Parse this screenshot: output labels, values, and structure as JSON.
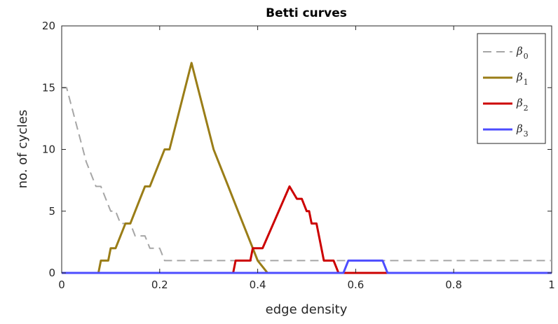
{
  "chart_data": {
    "type": "line",
    "title": "Betti curves",
    "xlabel": "edge density",
    "ylabel": "no. of cycles",
    "xlim": [
      0,
      1
    ],
    "ylim": [
      0,
      20
    ],
    "xticks": [
      0,
      0.2,
      0.4,
      0.6,
      0.8,
      1
    ],
    "xtick_labels": [
      "0",
      "0.2",
      "0.4",
      "0.6",
      "0.8",
      "1"
    ],
    "yticks": [
      0,
      5,
      10,
      15,
      20
    ],
    "ytick_labels": [
      "0",
      "5",
      "10",
      "15",
      "20"
    ],
    "grid": false,
    "legend_position": "top-right",
    "series": [
      {
        "name": "β0",
        "legend_symbol": "β",
        "legend_subscript": "0",
        "color": "#a6a6a6",
        "dashed": true,
        "width": 2,
        "points": [
          [
            0,
            15
          ],
          [
            0.01,
            15
          ],
          [
            0.03,
            12
          ],
          [
            0.05,
            9
          ],
          [
            0.07,
            7
          ],
          [
            0.08,
            7
          ],
          [
            0.09,
            6
          ],
          [
            0.1,
            5
          ],
          [
            0.11,
            5
          ],
          [
            0.12,
            4
          ],
          [
            0.14,
            4
          ],
          [
            0.15,
            3
          ],
          [
            0.17,
            3
          ],
          [
            0.18,
            2
          ],
          [
            0.19,
            2
          ],
          [
            0.2,
            2
          ],
          [
            0.21,
            1
          ],
          [
            1,
            1
          ]
        ]
      },
      {
        "name": "β1",
        "legend_symbol": "β",
        "legend_subscript": "1",
        "color": "#9a7d17",
        "dashed": false,
        "width": 3,
        "points": [
          [
            0,
            0
          ],
          [
            0.075,
            0
          ],
          [
            0.08,
            1
          ],
          [
            0.095,
            1
          ],
          [
            0.1,
            2
          ],
          [
            0.11,
            2
          ],
          [
            0.12,
            3
          ],
          [
            0.13,
            4
          ],
          [
            0.14,
            4
          ],
          [
            0.16,
            6
          ],
          [
            0.17,
            7
          ],
          [
            0.18,
            7
          ],
          [
            0.19,
            8
          ],
          [
            0.2,
            9
          ],
          [
            0.21,
            10
          ],
          [
            0.22,
            10
          ],
          [
            0.265,
            17
          ],
          [
            0.31,
            10
          ],
          [
            0.32,
            9
          ],
          [
            0.33,
            8
          ],
          [
            0.34,
            7
          ],
          [
            0.35,
            6
          ],
          [
            0.36,
            5
          ],
          [
            0.38,
            3
          ],
          [
            0.39,
            2
          ],
          [
            0.4,
            1
          ],
          [
            0.42,
            0
          ],
          [
            1,
            0
          ]
        ]
      },
      {
        "name": "β2",
        "legend_symbol": "β",
        "legend_subscript": "2",
        "color": "#cc0000",
        "dashed": false,
        "width": 3,
        "points": [
          [
            0,
            0
          ],
          [
            0.35,
            0
          ],
          [
            0.355,
            1
          ],
          [
            0.385,
            1
          ],
          [
            0.39,
            2
          ],
          [
            0.41,
            2
          ],
          [
            0.465,
            7
          ],
          [
            0.48,
            6
          ],
          [
            0.49,
            6
          ],
          [
            0.5,
            5
          ],
          [
            0.505,
            5
          ],
          [
            0.51,
            4
          ],
          [
            0.52,
            4
          ],
          [
            0.525,
            3
          ],
          [
            0.53,
            2
          ],
          [
            0.535,
            1
          ],
          [
            0.555,
            1
          ],
          [
            0.565,
            0
          ],
          [
            1,
            0
          ]
        ]
      },
      {
        "name": "β3",
        "legend_symbol": "β",
        "legend_subscript": "3",
        "color": "#4d4dff",
        "dashed": false,
        "width": 3,
        "points": [
          [
            0,
            0
          ],
          [
            0.575,
            0
          ],
          [
            0.585,
            1
          ],
          [
            0.655,
            1
          ],
          [
            0.665,
            0
          ],
          [
            1,
            0
          ]
        ]
      }
    ]
  }
}
